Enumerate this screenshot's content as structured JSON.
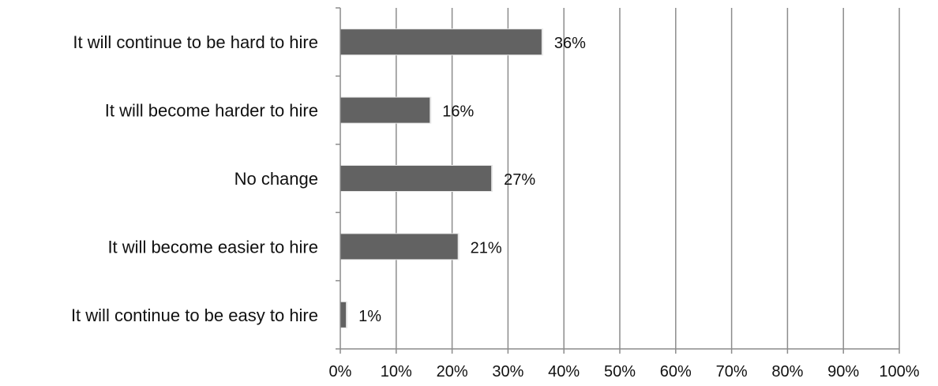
{
  "chart_data": {
    "type": "bar",
    "orientation": "horizontal",
    "categories": [
      "It will continue to be hard to hire",
      "It will become harder to hire",
      "No change",
      "It will become easier to hire",
      "It will continue to be easy to hire"
    ],
    "values": [
      36,
      16,
      27,
      21,
      1
    ],
    "data_labels": [
      "36%",
      "16%",
      "27%",
      "21%",
      "1%"
    ],
    "x_ticks": [
      "0%",
      "10%",
      "20%",
      "30%",
      "40%",
      "50%",
      "60%",
      "70%",
      "80%",
      "90%",
      "100%"
    ],
    "xlim": [
      0,
      100
    ],
    "grid": "vertical",
    "legend": "none",
    "title": "",
    "xlabel": "",
    "ylabel": "",
    "colors": {
      "bar": "#626262",
      "bar_highlight": "#e8e8e8",
      "grid": "#8c8c8c",
      "axis": "#8c8c8c"
    }
  }
}
